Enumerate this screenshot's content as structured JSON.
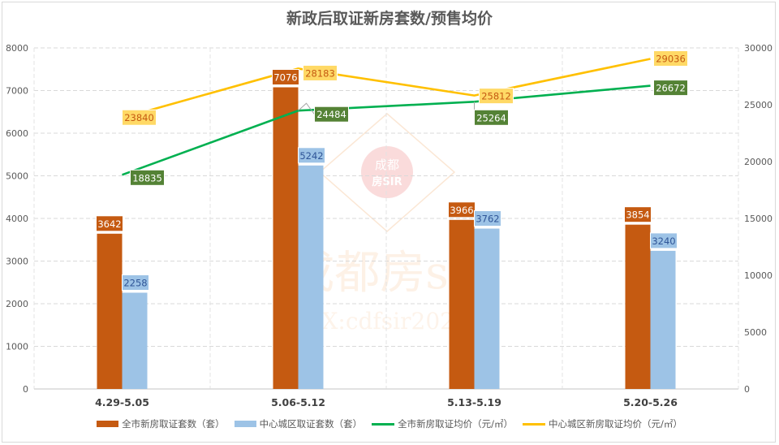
{
  "title": "新政后取证新房套数/预售均价",
  "legend": [
    {
      "label": "全市新房取证套数（套）",
      "type": "bar",
      "color": "#C55A11"
    },
    {
      "label": "中心城区取证套数（套）",
      "type": "bar",
      "color": "#9DC3E6"
    },
    {
      "label": "全市新房取证均价（元/㎡）",
      "type": "line",
      "color": "#00B050"
    },
    {
      "label": "中心城区新房取证均价（元/㎡）",
      "type": "line",
      "color": "#FFC000"
    }
  ],
  "watermark": {
    "logo_text_top": "成都",
    "logo_text_bottom": "房SIR",
    "main_text": "成都房sir",
    "sub_text": "VX:cdfsir2022"
  },
  "chart_data": {
    "type": "bar",
    "title": "新政后取证新房套数/预售均价",
    "categories": [
      "4.29-5.05",
      "5.06-5.12",
      "5.13-5.19",
      "5.20-5.26"
    ],
    "series": [
      {
        "name": "全市新房取证套数（套）",
        "type": "bar",
        "axis": "left",
        "color": "#C55A11",
        "values": [
          3642,
          7076,
          3966,
          3854
        ]
      },
      {
        "name": "中心城区取证套数（套）",
        "type": "bar",
        "axis": "left",
        "color": "#9DC3E6",
        "values": [
          2258,
          5242,
          3762,
          3240
        ]
      },
      {
        "name": "全市新房取证均价（元/㎡）",
        "type": "line",
        "axis": "right",
        "color": "#00B050",
        "label_bg": "#548235",
        "values": [
          18835,
          24484,
          25264,
          26672
        ]
      },
      {
        "name": "中心城区新房取证均价（元/㎡）",
        "type": "line",
        "axis": "right",
        "color": "#FFC000",
        "label_bg": "#FFD966",
        "values": [
          23840,
          28183,
          25812,
          29036
        ]
      }
    ],
    "y_left": {
      "min": 0,
      "max": 8000,
      "ticks": [
        0,
        1000,
        2000,
        3000,
        4000,
        5000,
        6000,
        7000,
        8000
      ]
    },
    "y_right": {
      "min": 0,
      "max": 30000,
      "ticks": [
        0,
        5000,
        10000,
        15000,
        20000,
        25000,
        30000
      ]
    },
    "xlabel": "",
    "ylabel": "",
    "grid": true,
    "legend_position": "bottom"
  }
}
